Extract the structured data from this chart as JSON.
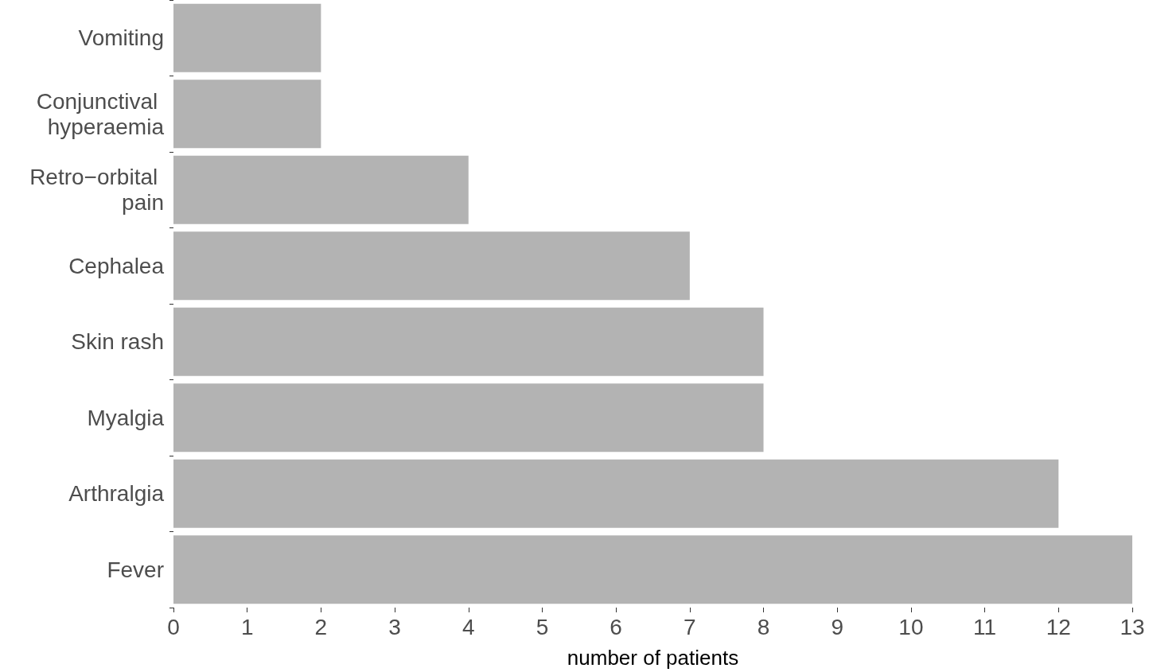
{
  "chart_data": {
    "type": "bar",
    "orientation": "horizontal",
    "categories": [
      "Vomiting",
      "Conjunctival hyperaemia",
      "Retro−orbital pain",
      "Cephalea",
      "Skin rash",
      "Myalgia",
      "Arthralgia",
      "Fever"
    ],
    "values": [
      2,
      2,
      4,
      7,
      8,
      8,
      12,
      13
    ],
    "color": "#b3b3b3",
    "xlabel": "number of patients",
    "xlim": [
      0,
      13
    ],
    "xticks": [
      0,
      1,
      2,
      3,
      4,
      5,
      6,
      7,
      8,
      9,
      10,
      11,
      12,
      13
    ],
    "grid": false
  }
}
